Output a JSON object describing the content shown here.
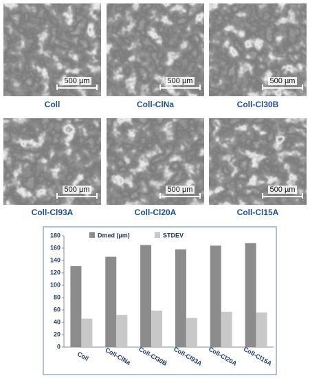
{
  "panels": [
    {
      "label": "Coll",
      "scale": "500 µm"
    },
    {
      "label": "Coll-ClNa",
      "scale": "500 µm"
    },
    {
      "label": "Coll-Cl30B",
      "scale": "500 µm"
    },
    {
      "label": "Coll-Cl93A",
      "scale": "500 µm"
    },
    {
      "label": "Coll-Cl20A",
      "scale": "500 µm"
    },
    {
      "label": "Coll-Cl15A",
      "scale": "500 µm"
    }
  ],
  "chart_data": {
    "type": "bar",
    "categories": [
      "Coll",
      "Coll-ClNa",
      "Coll-Cl30B",
      "Coll-Cl93A",
      "Coll-Cl20A",
      "Coll-Cl15A"
    ],
    "series": [
      {
        "name": "Dmed (µm)",
        "color": "#8c8c8c",
        "values": [
          131,
          146,
          165,
          158,
          164,
          168
        ]
      },
      {
        "name": "STDEV",
        "color": "#c8c8c8",
        "values": [
          46,
          52,
          59,
          47,
          57,
          56
        ]
      }
    ],
    "ylim": [
      0,
      180
    ],
    "yticks": [
      0,
      20,
      40,
      60,
      80,
      100,
      120,
      140,
      160,
      180
    ],
    "grid": false,
    "legend": "top"
  }
}
